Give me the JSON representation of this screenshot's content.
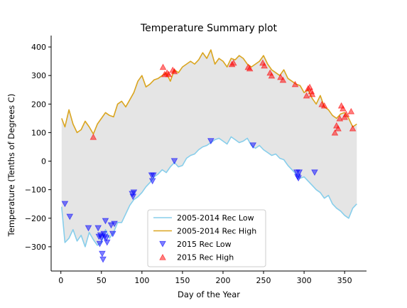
{
  "chart_data": {
    "type": "line",
    "title": "Temperature Summary plot",
    "xlabel": "Day of the Year",
    "ylabel": "Temperature (Tenths of Degrees C)",
    "xlim": [
      -12,
      377
    ],
    "ylim": [
      -385,
      440
    ],
    "xticks": [
      0,
      50,
      100,
      150,
      200,
      250,
      300,
      350
    ],
    "yticks": [
      -300,
      -200,
      -100,
      0,
      100,
      200,
      300,
      400
    ],
    "grid": false,
    "legend_position": "lower-center",
    "fill_between": {
      "color": "#e5e5e5",
      "lower_series": "2005-2014 Rec Low",
      "upper_series": "2005-2014 Rec High"
    },
    "series": [
      {
        "name": "2005-2014 Rec Low",
        "kind": "line",
        "color": "#87ceeb",
        "x": [
          1,
          5,
          10,
          15,
          20,
          25,
          30,
          35,
          40,
          45,
          50,
          55,
          60,
          65,
          70,
          75,
          80,
          85,
          90,
          95,
          100,
          105,
          110,
          115,
          120,
          125,
          130,
          135,
          140,
          145,
          150,
          155,
          160,
          165,
          170,
          175,
          180,
          185,
          190,
          195,
          200,
          205,
          210,
          215,
          220,
          225,
          230,
          235,
          240,
          245,
          250,
          255,
          260,
          265,
          270,
          275,
          280,
          285,
          290,
          295,
          300,
          305,
          310,
          315,
          320,
          325,
          330,
          335,
          340,
          345,
          350,
          355,
          360,
          365
        ],
        "y": [
          -160,
          -285,
          -270,
          -240,
          -280,
          -260,
          -300,
          -250,
          -275,
          -295,
          -285,
          -240,
          -270,
          -250,
          -215,
          -215,
          -185,
          -155,
          -135,
          -125,
          -110,
          -90,
          -75,
          -55,
          -45,
          -30,
          -40,
          -20,
          -5,
          -20,
          -15,
          10,
          20,
          25,
          40,
          50,
          55,
          65,
          75,
          80,
          70,
          60,
          85,
          75,
          65,
          70,
          80,
          55,
          45,
          55,
          40,
          30,
          20,
          25,
          10,
          5,
          -15,
          -30,
          -45,
          -60,
          -55,
          -70,
          -85,
          -100,
          -110,
          -130,
          -120,
          -150,
          -165,
          -175,
          -190,
          -200,
          -165,
          -150
        ]
      },
      {
        "name": "2005-2014 Rec High",
        "kind": "line",
        "color": "#daa520",
        "x": [
          1,
          5,
          10,
          15,
          20,
          25,
          30,
          35,
          40,
          45,
          50,
          55,
          60,
          65,
          70,
          75,
          80,
          85,
          90,
          95,
          100,
          105,
          110,
          115,
          120,
          125,
          130,
          135,
          140,
          145,
          150,
          155,
          160,
          165,
          170,
          175,
          180,
          185,
          190,
          195,
          200,
          205,
          210,
          215,
          220,
          225,
          230,
          235,
          240,
          245,
          250,
          255,
          260,
          265,
          270,
          275,
          280,
          285,
          290,
          295,
          300,
          305,
          310,
          315,
          320,
          325,
          330,
          335,
          340,
          345,
          350,
          355,
          360,
          365
        ],
        "y": [
          150,
          120,
          180,
          130,
          100,
          110,
          140,
          120,
          95,
          130,
          150,
          170,
          160,
          155,
          200,
          210,
          190,
          215,
          240,
          280,
          300,
          260,
          270,
          285,
          290,
          300,
          310,
          280,
          320,
          310,
          330,
          340,
          350,
          340,
          355,
          380,
          360,
          390,
          340,
          360,
          350,
          330,
          360,
          355,
          370,
          360,
          340,
          330,
          340,
          350,
          370,
          340,
          320,
          310,
          300,
          320,
          290,
          280,
          270,
          265,
          240,
          250,
          220,
          200,
          230,
          190,
          180,
          160,
          150,
          165,
          170,
          150,
          120,
          130
        ]
      },
      {
        "name": "2015 Rec Low",
        "kind": "scatter",
        "marker": "triangle-down",
        "color": "#0000ff",
        "x": [
          5,
          11,
          34,
          46,
          47,
          48,
          49,
          50,
          51,
          52,
          53,
          54,
          55,
          56,
          57,
          62,
          64,
          66,
          88,
          89,
          90,
          112,
          113,
          114,
          140,
          185,
          237,
          291,
          292,
          293,
          294,
          313
        ],
        "y": [
          -150,
          -195,
          -235,
          -235,
          -265,
          -290,
          -260,
          -270,
          -325,
          -345,
          -255,
          -265,
          -210,
          -270,
          -285,
          -225,
          -255,
          -220,
          -115,
          -125,
          -110,
          -50,
          -70,
          -50,
          0,
          70,
          55,
          -40,
          -55,
          -60,
          -40,
          -40
        ]
      },
      {
        "name": "2015 Rec High",
        "kind": "scatter",
        "marker": "triangle-up",
        "color": "#ff0000",
        "x": [
          40,
          126,
          128,
          131,
          133,
          138,
          140,
          211,
          213,
          231,
          233,
          249,
          251,
          258,
          260,
          271,
          274,
          289,
          303,
          305,
          307,
          309,
          310,
          322,
          325,
          338,
          340,
          342,
          344,
          346,
          348,
          350,
          352,
          358,
          360
        ],
        "y": [
          85,
          330,
          305,
          310,
          305,
          320,
          315,
          340,
          345,
          330,
          325,
          345,
          335,
          310,
          300,
          295,
          285,
          270,
          230,
          255,
          260,
          245,
          235,
          200,
          195,
          100,
          125,
          115,
          150,
          195,
          185,
          155,
          165,
          175,
          115
        ]
      }
    ]
  }
}
